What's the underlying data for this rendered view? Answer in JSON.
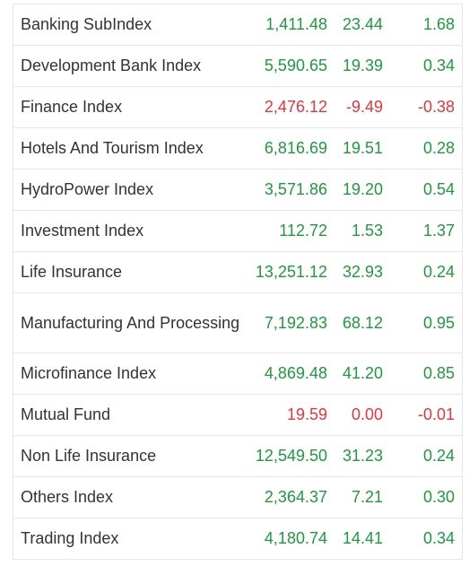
{
  "colors": {
    "positive": "#1e9a3c",
    "negative": "#e8343c",
    "text": "#333333",
    "border": "#e6e6e6"
  },
  "rows": [
    {
      "name": "Banking SubIndex",
      "value": "1,411.48",
      "change": "23.44",
      "percent": "1.68",
      "direction": "up"
    },
    {
      "name": "Development Bank Index",
      "value": "5,590.65",
      "change": "19.39",
      "percent": "0.34",
      "direction": "up"
    },
    {
      "name": "Finance Index",
      "value": "2,476.12",
      "change": "-9.49",
      "percent": "-0.38",
      "direction": "down"
    },
    {
      "name": "Hotels And Tourism Index",
      "value": "6,816.69",
      "change": "19.51",
      "percent": "0.28",
      "direction": "up"
    },
    {
      "name": "HydroPower Index",
      "value": "3,571.86",
      "change": "19.20",
      "percent": "0.54",
      "direction": "up"
    },
    {
      "name": "Investment Index",
      "value": "112.72",
      "change": "1.53",
      "percent": "1.37",
      "direction": "up"
    },
    {
      "name": "Life Insurance",
      "value": "13,251.12",
      "change": "32.93",
      "percent": "0.24",
      "direction": "up"
    },
    {
      "name": "Manufacturing And Processing",
      "value": "7,192.83",
      "change": "68.12",
      "percent": "0.95",
      "direction": "up"
    },
    {
      "name": "Microfinance Index",
      "value": "4,869.48",
      "change": "41.20",
      "percent": "0.85",
      "direction": "up"
    },
    {
      "name": "Mutual Fund",
      "value": "19.59",
      "change": "0.00",
      "percent": "-0.01",
      "direction": "down"
    },
    {
      "name": "Non Life Insurance",
      "value": "12,549.50",
      "change": "31.23",
      "percent": "0.24",
      "direction": "up"
    },
    {
      "name": "Others Index",
      "value": "2,364.37",
      "change": "7.21",
      "percent": "0.30",
      "direction": "up"
    },
    {
      "name": "Trading Index",
      "value": "4,180.74",
      "change": "14.41",
      "percent": "0.34",
      "direction": "up"
    }
  ]
}
